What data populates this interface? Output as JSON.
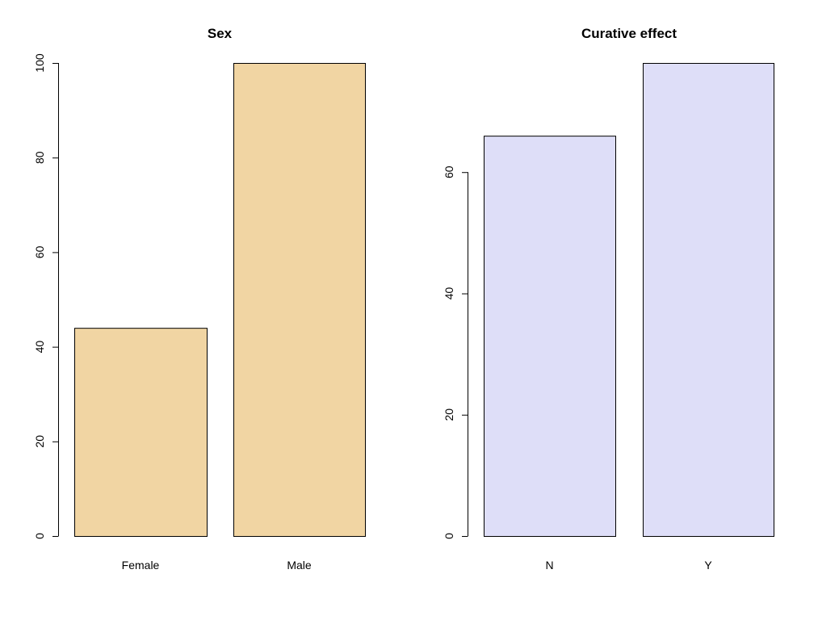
{
  "chart_data": [
    {
      "type": "bar",
      "title": "Sex",
      "xlabel": "",
      "ylabel": "",
      "categories": [
        "Female",
        "Male"
      ],
      "values": [
        44,
        100
      ],
      "ylim": [
        0,
        100
      ],
      "yticks": [
        0,
        20,
        40,
        60,
        80,
        100
      ],
      "bar_color": "#f1d5a3",
      "grid": false
    },
    {
      "type": "bar",
      "title": "Curative effect",
      "xlabel": "",
      "ylabel": "",
      "categories": [
        "N",
        "Y"
      ],
      "values": [
        66,
        78
      ],
      "ylim": [
        0,
        78
      ],
      "yticks": [
        0,
        20,
        40,
        60
      ],
      "bar_color": "#dedef8",
      "grid": false
    }
  ]
}
